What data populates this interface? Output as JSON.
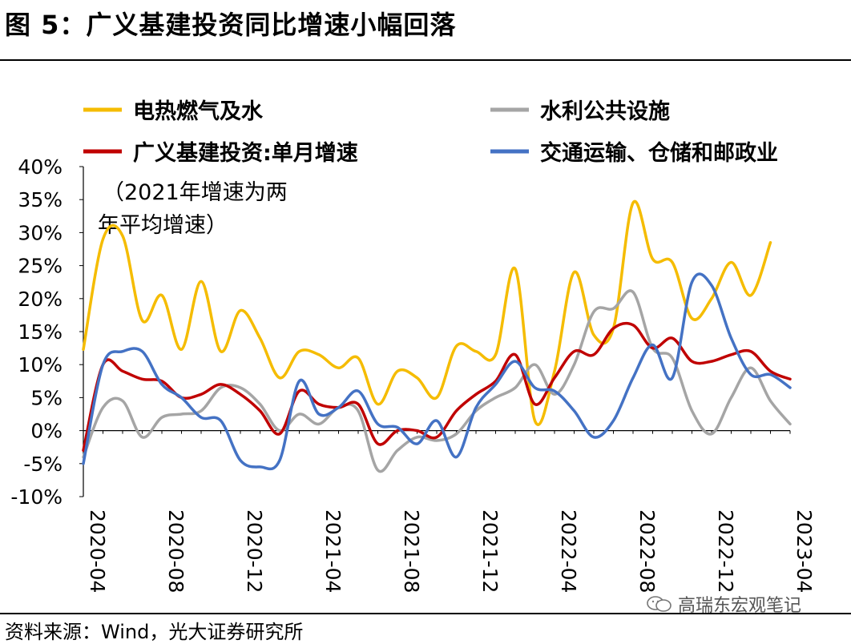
{
  "header": {
    "title": "图 5：广义基建投资同比增速小幅回落"
  },
  "footer": {
    "source": "资料来源：Wind，光大证券研究所"
  },
  "watermark": {
    "text": "高瑞东宏观笔记"
  },
  "chart_data": {
    "type": "line",
    "title": "",
    "xlabel": "",
    "ylabel": "",
    "y_unit": "%",
    "ylim": [
      -10,
      40
    ],
    "y_ticks": [
      -10,
      -5,
      0,
      5,
      10,
      15,
      20,
      25,
      30,
      35,
      40
    ],
    "y_tick_labels": [
      "-10%",
      "-5%",
      "0%",
      "5%",
      "10%",
      "15%",
      "20%",
      "25%",
      "30%",
      "35%",
      "40%"
    ],
    "x": [
      "2020-04",
      "2020-05",
      "2020-06",
      "2020-07",
      "2020-08",
      "2020-09",
      "2020-10",
      "2020-11",
      "2020-12",
      "2021-01",
      "2021-02",
      "2021-03",
      "2021-04",
      "2021-05",
      "2021-06",
      "2021-07",
      "2021-08",
      "2021-09",
      "2021-10",
      "2021-11",
      "2021-12",
      "2022-01",
      "2022-02",
      "2022-03",
      "2022-04",
      "2022-05",
      "2022-06",
      "2022-07",
      "2022-08",
      "2022-09",
      "2022-10",
      "2022-11",
      "2022-12",
      "2023-01",
      "2023-02",
      "2023-03",
      "2023-04"
    ],
    "x_tick_labels": [
      "2020-04",
      "2020-08",
      "2020-12",
      "2021-04",
      "2021-08",
      "2021-12",
      "2022-04",
      "2022-08",
      "2022-12",
      "2023-04"
    ],
    "grid": false,
    "legend_position": "top",
    "annotation": [
      "（2021年增速为两",
      "年平均增速）"
    ],
    "series": [
      {
        "name": "电热燃气及水",
        "color": "#F5BC00",
        "values": [
          12.3,
          29.0,
          29.5,
          16.7,
          20.5,
          12.3,
          22.6,
          12.0,
          18.2,
          14.0,
          8.0,
          12.0,
          11.5,
          9.5,
          11.0,
          4.0,
          9.0,
          8.0,
          5.0,
          12.8,
          12.0,
          11.5,
          24.5,
          1.5,
          9.0,
          24.0,
          14.5,
          15.5,
          34.5,
          26.0,
          25.5,
          17.0,
          20.0,
          25.5,
          20.5,
          28.5,
          null
        ]
      },
      {
        "name": "水利公共设施",
        "color": "#A5A5A5",
        "values": [
          -4.0,
          3.5,
          4.5,
          -1.0,
          2.0,
          2.5,
          3.0,
          6.5,
          6.5,
          4.0,
          0.0,
          2.5,
          1.0,
          3.5,
          3.0,
          -6.0,
          -3.0,
          -1.0,
          -1.5,
          -0.5,
          3.0,
          5.0,
          6.5,
          10.0,
          5.5,
          10.0,
          18.0,
          18.5,
          21.0,
          12.5,
          11.0,
          3.0,
          -0.5,
          5.0,
          9.5,
          4.5,
          1.0
        ]
      },
      {
        "name": "广义基建投资:单月增速",
        "color": "#C00000",
        "values": [
          -3.0,
          10.0,
          9.0,
          7.8,
          7.5,
          5.0,
          5.5,
          7.0,
          5.5,
          3.0,
          -0.5,
          6.0,
          4.0,
          3.5,
          4.0,
          -2.0,
          0.0,
          0.0,
          -1.0,
          3.0,
          5.5,
          7.5,
          11.5,
          4.0,
          8.0,
          12.0,
          11.5,
          15.5,
          16.0,
          12.5,
          14.0,
          10.5,
          10.5,
          11.5,
          12.0,
          9.0,
          7.8
        ]
      },
      {
        "name": "交通运输、仓储和邮政业",
        "color": "#4472C4",
        "values": [
          -5.0,
          10.0,
          12.0,
          12.0,
          7.0,
          5.0,
          2.0,
          1.5,
          -4.5,
          -5.5,
          -4.5,
          7.5,
          2.5,
          3.5,
          6.0,
          1.0,
          0.5,
          -2.0,
          1.5,
          -4.0,
          3.5,
          7.0,
          10.5,
          6.5,
          6.0,
          3.0,
          -1.0,
          1.5,
          8.0,
          13.0,
          8.0,
          22.5,
          22.0,
          14.0,
          8.5,
          8.5,
          6.5
        ]
      }
    ]
  }
}
